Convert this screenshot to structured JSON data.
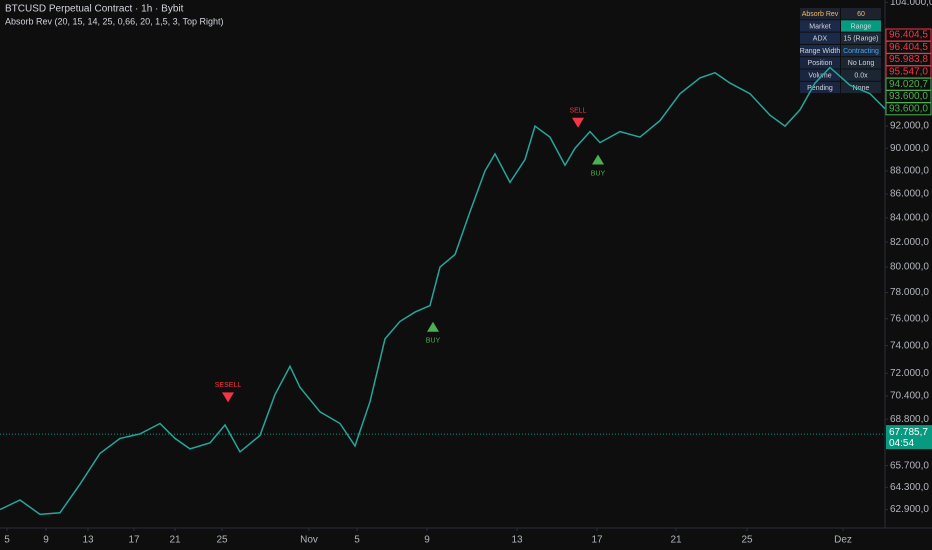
{
  "header": {
    "symbol": "BTCUSD Perpetual Contract · 1h · Bybit",
    "indicator": "Absorb Rev (20, 15, 14, 25, 0,66, 20, 1,5, 3, Top Right)"
  },
  "chart_data": {
    "type": "line",
    "log_scale": true,
    "color": "#26a69a",
    "x": [
      0,
      20,
      40,
      60,
      80,
      100,
      120,
      140,
      160,
      175,
      190,
      210,
      225,
      240,
      260,
      275,
      290,
      300,
      320,
      340,
      355,
      370,
      385,
      400,
      415,
      430,
      440,
      455,
      470,
      485,
      495,
      510,
      525,
      535,
      550,
      565,
      575,
      590,
      600,
      620,
      640,
      660,
      680,
      700,
      715,
      730,
      750,
      770,
      785,
      800,
      815,
      830,
      850,
      870,
      885
    ],
    "values": [
      62900,
      63500,
      62600,
      62700,
      64500,
      66500,
      67500,
      67800,
      68500,
      67500,
      66800,
      67200,
      68400,
      66600,
      67700,
      70500,
      72500,
      71000,
      69300,
      68500,
      67000,
      70000,
      74500,
      75800,
      76500,
      77000,
      80000,
      81000,
      84500,
      88000,
      89500,
      87000,
      89000,
      92000,
      91000,
      88500,
      90000,
      91500,
      90500,
      91500,
      91000,
      92500,
      95000,
      96500,
      97000,
      96000,
      95000,
      93000,
      92000,
      93500,
      96000,
      97500,
      95800,
      95000,
      93600
    ],
    "xlim": [
      0,
      885
    ],
    "xticks": [
      {
        "value": 7,
        "label": "5"
      },
      {
        "value": 46,
        "label": "9"
      },
      {
        "value": 88,
        "label": "13"
      },
      {
        "value": 134,
        "label": "17"
      },
      {
        "value": 175,
        "label": "21"
      },
      {
        "value": 222,
        "label": "25"
      },
      {
        "value": 309,
        "label": "Nov"
      },
      {
        "value": 357,
        "label": "5"
      },
      {
        "value": 427,
        "label": "9"
      },
      {
        "value": 517,
        "label": "13"
      },
      {
        "value": 597,
        "label": "17"
      },
      {
        "value": 676,
        "label": "21"
      },
      {
        "value": 747,
        "label": "25"
      },
      {
        "value": 843,
        "label": "Dez"
      }
    ],
    "ylim": [
      61760,
      104250
    ],
    "yticks": [
      {
        "value": 104000,
        "label": "104.000,0"
      },
      {
        "value": 92000,
        "label": "92.000,0"
      },
      {
        "value": 90000,
        "label": "90.000,0"
      },
      {
        "value": 88000,
        "label": "88.000,0"
      },
      {
        "value": 86000,
        "label": "86.000,0"
      },
      {
        "value": 84000,
        "label": "84.000,0"
      },
      {
        "value": 82000,
        "label": "82.000,0"
      },
      {
        "value": 80000,
        "label": "80.000,0"
      },
      {
        "value": 78000,
        "label": "78.000,0"
      },
      {
        "value": 76000,
        "label": "76.000,0"
      },
      {
        "value": 74000,
        "label": "74.000,0"
      },
      {
        "value": 72000,
        "label": "72.000,0"
      },
      {
        "value": 70400,
        "label": "70.400,0"
      },
      {
        "value": 68800,
        "label": "68.800,0"
      },
      {
        "value": 65700,
        "label": "65.700,0"
      },
      {
        "value": 64300,
        "label": "64.300,0"
      },
      {
        "value": 62900,
        "label": "62.900,0"
      }
    ],
    "signals": [
      {
        "label": "SESELL",
        "x": 228,
        "y": 70300,
        "color": "#f23645"
      },
      {
        "label": "SELL",
        "x": 578,
        "y": 92300,
        "color": "#f23645"
      },
      {
        "label": "BUY",
        "x": 433,
        "y": 75400,
        "color": "#4caf50"
      },
      {
        "label": "BUY",
        "x": 598,
        "y": 89000,
        "color": "#4caf50"
      }
    ],
    "current_price": {
      "value": 67785.7,
      "label": "67.785,7",
      "countdown": "04:54",
      "color": "#089981"
    },
    "price_tags": [
      {
        "value": 96404.5,
        "label": "96.404,5",
        "color": "#f23645"
      },
      {
        "value": 96404.5,
        "label": "96.404,5",
        "color": "#f23645"
      },
      {
        "value": 95983.8,
        "label": "95.983,8",
        "color": "#f23645"
      },
      {
        "value": 95547.0,
        "label": "95.547,0",
        "color": "#f23645"
      },
      {
        "value": 94020.7,
        "label": "94.020,7",
        "color": "#4caf50"
      },
      {
        "value": 93600.0,
        "label": "93.600,0",
        "color": "#4caf50"
      },
      {
        "value": 93600.0,
        "label": "93.600,0",
        "color": "#4caf50"
      }
    ]
  },
  "table": {
    "rows": [
      [
        "Absorb Rev",
        "60"
      ],
      [
        "Market",
        "Range"
      ],
      [
        "ADX",
        "15 (Range)"
      ],
      [
        "Range Width",
        "Contracting"
      ],
      [
        "Position",
        "No Long"
      ],
      [
        "Volume",
        "0.0x"
      ],
      [
        "Pending",
        "None"
      ]
    ]
  }
}
